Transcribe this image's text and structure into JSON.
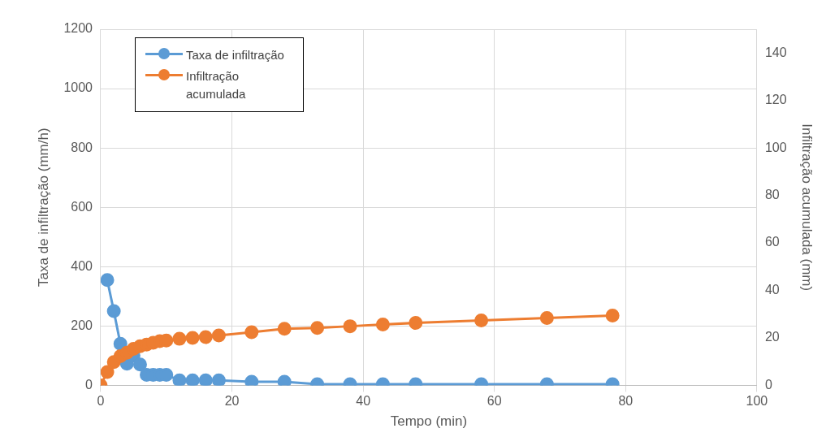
{
  "chart_data": {
    "type": "line",
    "xlabel": "Tempo (min)",
    "ylabel": "Taxa de infiltração (mm/h)",
    "y2label": "Infiltração acumulada (mm)",
    "xlim": [
      0,
      100
    ],
    "xticks": [
      0,
      20,
      40,
      60,
      80,
      100
    ],
    "ylim": [
      0,
      1200
    ],
    "yticks": [
      0,
      200,
      400,
      600,
      800,
      1000,
      1200
    ],
    "y2lim": [
      0,
      150
    ],
    "y2ticks": [
      0,
      20,
      40,
      60,
      80,
      100,
      120,
      140
    ],
    "grid": true,
    "legend": "top left",
    "marker": "circle",
    "line_style": "solid",
    "series": [
      {
        "name": "Taxa de infiltração",
        "color": "#5b9bd5",
        "x": [
          1,
          2,
          3,
          4,
          5,
          6,
          7,
          8,
          9,
          10,
          12,
          14,
          16,
          18,
          23,
          28,
          33,
          38,
          43,
          48,
          58,
          68,
          78
        ],
        "values": [
          355,
          250,
          140,
          73,
          100,
          70,
          35,
          35,
          35,
          35,
          17,
          17,
          17,
          17,
          12,
          12,
          4,
          4,
          4,
          4,
          4,
          4,
          4
        ]
      },
      {
        "name": "Infiltração acumulada",
        "color": "#ed7d31",
        "axis": "y2",
        "x": [
          0,
          1,
          2,
          3,
          4,
          5,
          6,
          7,
          8,
          9,
          10,
          12,
          14,
          16,
          18,
          23,
          28,
          33,
          38,
          43,
          48,
          58,
          68,
          78
        ],
        "values": [
          0,
          5.6,
          9.8,
          12.3,
          13.7,
          15.4,
          16.5,
          17.2,
          17.9,
          18.6,
          18.9,
          19.6,
          20,
          20.3,
          21,
          22.4,
          23.8,
          24.2,
          24.9,
          25.6,
          26.3,
          27.3,
          28.4,
          29.4
        ]
      }
    ]
  }
}
